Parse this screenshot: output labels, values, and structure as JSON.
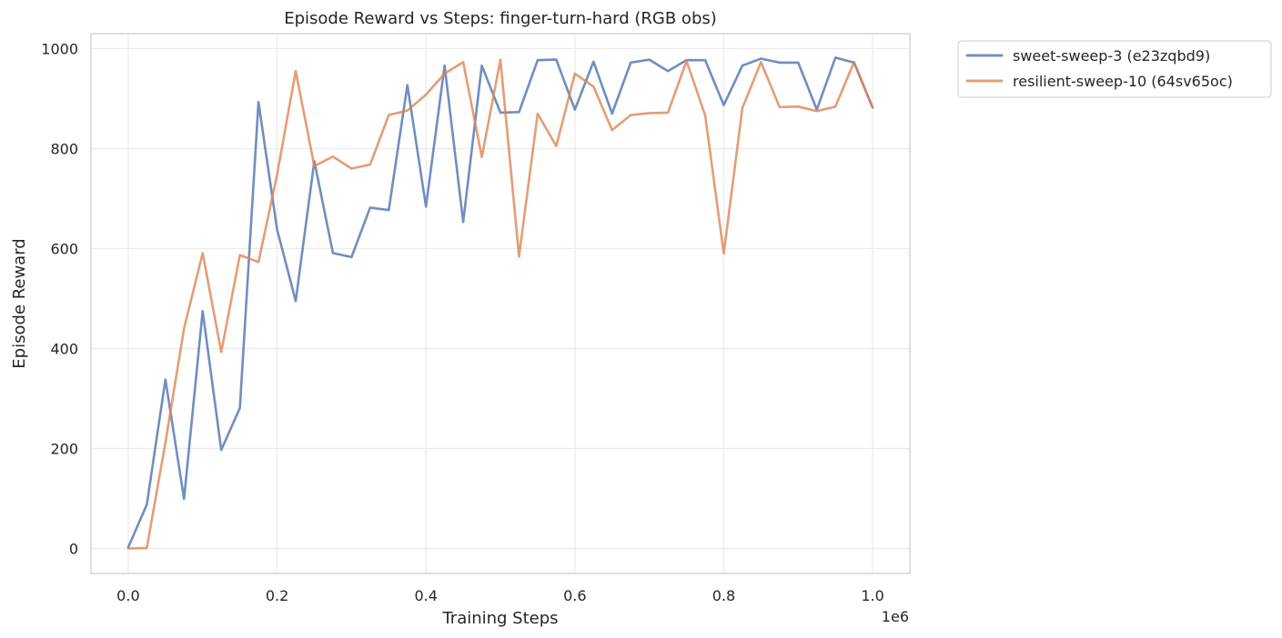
{
  "chart_data": {
    "type": "line",
    "title": "Episode Reward vs Steps: finger-turn-hard (RGB obs)",
    "xlabel": "Training Steps",
    "ylabel": "Episode Reward",
    "x_offset_label": "1e6",
    "xlim": [
      -0.05,
      1.05
    ],
    "ylim": [
      -50,
      1030
    ],
    "x_ticks": [
      0.0,
      0.2,
      0.4,
      0.6,
      0.8,
      1.0
    ],
    "x_tick_labels": [
      "0.0",
      "0.2",
      "0.4",
      "0.6",
      "0.8",
      "1.0"
    ],
    "y_ticks": [
      0,
      200,
      400,
      600,
      800,
      1000
    ],
    "y_tick_labels": [
      "0",
      "200",
      "400",
      "600",
      "800",
      "1000"
    ],
    "grid": true,
    "legend_placement": "outside-top-right",
    "x": [
      0.0,
      0.025,
      0.05,
      0.075,
      0.1,
      0.125,
      0.15,
      0.175,
      0.2,
      0.225,
      0.25,
      0.275,
      0.3,
      0.325,
      0.35,
      0.375,
      0.4,
      0.425,
      0.45,
      0.475,
      0.5,
      0.525,
      0.55,
      0.575,
      0.6,
      0.625,
      0.65,
      0.675,
      0.7,
      0.725,
      0.75,
      0.775,
      0.8,
      0.825,
      0.85,
      0.875,
      0.9,
      0.925,
      0.95,
      0.975,
      1.0
    ],
    "series": [
      {
        "name": "sweet-sweep-3 (e23zqbd9)",
        "color": "#4c72b0",
        "values": [
          2,
          88,
          338,
          99,
          475,
          197,
          281,
          893,
          638,
          495,
          775,
          591,
          583,
          682,
          677,
          927,
          684,
          966,
          653,
          966,
          872,
          873,
          977,
          978,
          878,
          974,
          870,
          972,
          978,
          955,
          977,
          977,
          887,
          966,
          980,
          972,
          972,
          878,
          982,
          972,
          882
        ]
      },
      {
        "name": "resilient-sweep-10 (64sv65oc)",
        "color": "#dd8452",
        "values": [
          0,
          1,
          212,
          440,
          591,
          393,
          587,
          573,
          748,
          955,
          765,
          784,
          760,
          768,
          867,
          876,
          908,
          950,
          973,
          783,
          978,
          584,
          870,
          805,
          950,
          924,
          837,
          867,
          871,
          872,
          975,
          867,
          590,
          881,
          973,
          883,
          884,
          875,
          884,
          973,
          882
        ]
      }
    ]
  }
}
